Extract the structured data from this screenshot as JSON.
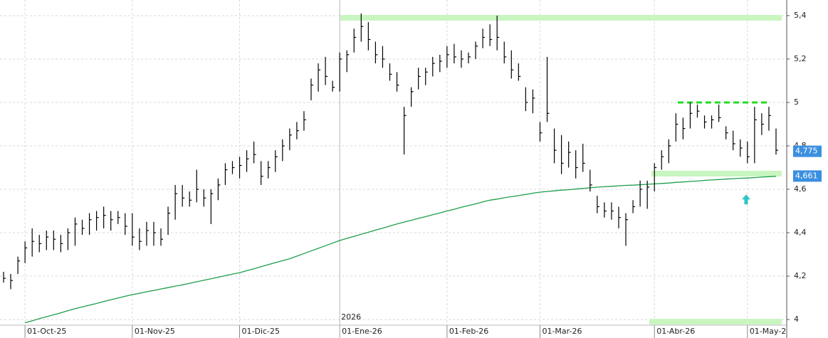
{
  "chart_data": {
    "type": "ohlc",
    "color": "#000000",
    "categories": [
      null,
      null,
      null,
      "01-Oct-25",
      null,
      null,
      null,
      null,
      null,
      null,
      null,
      null,
      null,
      null,
      null,
      null,
      null,
      null,
      "01-Nov-25",
      null,
      null,
      null,
      null,
      null,
      null,
      null,
      null,
      null,
      null,
      null,
      null,
      null,
      null,
      "01-Dic-25",
      null,
      null,
      null,
      null,
      null,
      null,
      null,
      null,
      null,
      null,
      null,
      null,
      null,
      "01-Ene-26",
      null,
      null,
      null,
      null,
      null,
      null,
      null,
      null,
      null,
      null,
      null,
      null,
      null,
      null,
      "01-Feb-26",
      null,
      null,
      null,
      null,
      null,
      null,
      null,
      null,
      null,
      null,
      null,
      null,
      "01-Mar-26",
      null,
      null,
      null,
      null,
      null,
      null,
      null,
      null,
      null,
      null,
      null,
      null,
      null,
      null,
      null,
      "01-Abr-26",
      null,
      null,
      null,
      null,
      null,
      null,
      null,
      null,
      null,
      null,
      null,
      null,
      "01-May-2",
      null,
      null,
      null,
      null
    ],
    "high": [
      4.22,
      4.21,
      4.29,
      4.36,
      4.42,
      4.39,
      4.41,
      4.41,
      4.39,
      4.42,
      4.47,
      4.46,
      4.49,
      4.5,
      4.52,
      4.5,
      4.5,
      4.49,
      4.49,
      4.42,
      4.45,
      4.45,
      4.42,
      4.52,
      4.62,
      4.62,
      4.59,
      4.69,
      4.6,
      4.6,
      4.65,
      4.72,
      4.73,
      4.75,
      4.78,
      4.82,
      4.73,
      4.73,
      4.78,
      4.83,
      4.88,
      4.91,
      4.96,
      5.11,
      5.18,
      5.21,
      5.1,
      5.23,
      5.24,
      5.34,
      5.41,
      5.37,
      5.28,
      5.26,
      5.18,
      5.14,
      4.98,
      5.07,
      5.16,
      5.16,
      5.21,
      5.22,
      5.26,
      5.27,
      5.24,
      5.23,
      5.28,
      5.34,
      5.36,
      5.4,
      5.28,
      5.24,
      5.18,
      5.07,
      5.06,
      4.91,
      5.21,
      4.88,
      4.85,
      4.82,
      4.78,
      4.81,
      4.69,
      4.57,
      4.54,
      4.54,
      4.52,
      4.49,
      4.55,
      4.64,
      4.64,
      4.72,
      4.78,
      4.83,
      4.95,
      4.93,
      5.0,
      4.99,
      4.94,
      4.94,
      4.99,
      4.89,
      4.87,
      4.83,
      4.82,
      4.98,
      4.95,
      4.98,
      4.88
    ],
    "low": [
      4.17,
      4.14,
      4.21,
      4.26,
      4.29,
      4.31,
      4.32,
      4.32,
      4.31,
      4.32,
      4.34,
      4.39,
      4.39,
      4.41,
      4.42,
      4.41,
      4.44,
      4.39,
      4.34,
      4.32,
      4.34,
      4.34,
      4.34,
      4.39,
      4.46,
      4.52,
      4.52,
      4.54,
      4.52,
      4.44,
      4.55,
      4.62,
      4.67,
      4.65,
      4.68,
      4.72,
      4.62,
      4.65,
      4.68,
      4.73,
      4.78,
      4.83,
      4.87,
      5.01,
      5.05,
      5.08,
      5.05,
      5.05,
      5.14,
      5.23,
      5.28,
      5.24,
      5.18,
      5.16,
      5.1,
      5.05,
      4.76,
      4.98,
      5.06,
      5.08,
      5.12,
      5.14,
      5.16,
      5.18,
      5.16,
      5.18,
      5.2,
      5.25,
      5.26,
      5.24,
      5.18,
      5.11,
      5.1,
      4.96,
      4.95,
      4.82,
      4.91,
      4.72,
      4.67,
      4.7,
      4.65,
      4.68,
      4.59,
      4.49,
      4.47,
      4.46,
      4.42,
      4.34,
      4.49,
      4.52,
      4.51,
      4.59,
      4.69,
      4.72,
      4.82,
      4.83,
      4.88,
      4.93,
      4.88,
      4.88,
      4.91,
      4.83,
      4.78,
      4.75,
      4.72,
      4.72,
      4.85,
      4.87,
      4.76
    ],
    "close": [
      4.19,
      4.18,
      4.27,
      4.33,
      4.36,
      4.35,
      4.38,
      4.37,
      4.35,
      4.4,
      4.44,
      4.42,
      4.46,
      4.47,
      4.48,
      4.46,
      4.47,
      4.43,
      4.38,
      4.36,
      4.41,
      4.4,
      4.37,
      4.49,
      4.58,
      4.56,
      4.55,
      4.6,
      4.56,
      4.58,
      4.62,
      4.69,
      4.7,
      4.71,
      4.74,
      4.76,
      4.66,
      4.7,
      4.75,
      4.8,
      4.85,
      4.87,
      4.92,
      5.08,
      5.15,
      5.12,
      5.07,
      5.2,
      5.22,
      5.3,
      5.35,
      5.29,
      5.22,
      5.2,
      5.13,
      5.08,
      4.94,
      5.05,
      5.12,
      5.14,
      5.18,
      5.19,
      5.22,
      5.21,
      5.2,
      5.21,
      5.26,
      5.3,
      5.29,
      5.3,
      5.21,
      5.15,
      5.12,
      5.0,
      5.02,
      4.86,
      4.95,
      4.78,
      4.72,
      4.77,
      4.7,
      4.72,
      4.62,
      4.52,
      4.5,
      4.5,
      4.47,
      4.46,
      4.52,
      4.6,
      4.61,
      4.7,
      4.75,
      4.8,
      4.9,
      4.88,
      4.95,
      4.96,
      4.91,
      4.92,
      4.93,
      4.86,
      4.81,
      4.79,
      4.75,
      4.92,
      4.9,
      4.94,
      4.78
    ],
    "ma": {
      "color": "#1e9e4a",
      "values": [
        null,
        null,
        null,
        3.985,
        3.994,
        4.004,
        4.013,
        4.022,
        4.031,
        4.041,
        4.05,
        4.058,
        4.066,
        4.074,
        4.083,
        4.091,
        4.099,
        4.107,
        4.115,
        4.121,
        4.128,
        4.134,
        4.141,
        4.147,
        4.154,
        4.16,
        4.167,
        4.174,
        4.181,
        4.188,
        4.195,
        4.202,
        4.209,
        4.216,
        4.225,
        4.234,
        4.243,
        4.253,
        4.262,
        4.271,
        4.28,
        4.292,
        4.304,
        4.316,
        4.328,
        4.34,
        4.352,
        4.364,
        4.374,
        4.383,
        4.393,
        4.402,
        4.412,
        4.421,
        4.431,
        4.44,
        4.449,
        4.457,
        4.466,
        4.474,
        4.483,
        4.491,
        4.5,
        4.508,
        4.517,
        4.525,
        4.533,
        4.542,
        4.55,
        4.555,
        4.561,
        4.566,
        4.571,
        4.576,
        4.582,
        4.587,
        4.59,
        4.593,
        4.596,
        4.598,
        4.601,
        4.604,
        4.607,
        4.61,
        4.612,
        4.614,
        4.616,
        4.618,
        4.619,
        4.621,
        4.623,
        4.625,
        4.627,
        4.629,
        4.632,
        4.634,
        4.636,
        4.638,
        4.641,
        4.643,
        4.645,
        4.647,
        4.649,
        4.651,
        4.652,
        4.654,
        4.656,
        4.658,
        4.66
      ]
    },
    "levels": [
      {
        "value": 5.39,
        "color": "#c8f5c0",
        "style": "band"
      },
      {
        "value": 4.672,
        "color": "#c8f5c0",
        "style": "band"
      },
      {
        "value": 3.99,
        "color": "#c8f5c0",
        "style": "band"
      },
      {
        "value": 5.0,
        "color": "#22dd22",
        "style": "dashed"
      }
    ],
    "price_labels": [
      {
        "value": 4.775,
        "label": "4,775",
        "color": "#3b8fe0"
      },
      {
        "value": 4.661,
        "label": "4,661",
        "color": "#3b8fe0"
      }
    ],
    "arrow": {
      "value": 4.55,
      "color": "#2ec4c4"
    },
    "year_label": "2026",
    "ylim": [
      3.915,
      5.472
    ],
    "yticks": [
      4,
      {
        "value": 4.2,
        "label": "4,2"
      },
      {
        "value": 4.4,
        "label": "4,4"
      },
      {
        "value": 4.6,
        "label": "4,6"
      },
      {
        "value": 4.8,
        "label": "4,8"
      },
      5,
      {
        "value": 5.2,
        "label": "5,2"
      },
      {
        "value": 5.4,
        "label": "5,4"
      }
    ],
    "grid": true
  }
}
